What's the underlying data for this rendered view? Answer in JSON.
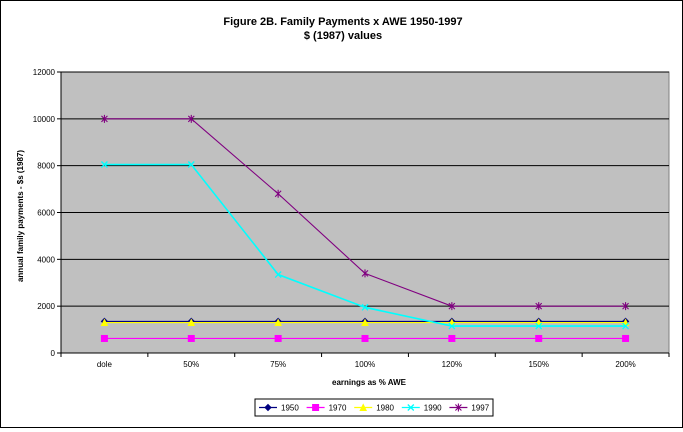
{
  "chart_data": {
    "type": "line",
    "title": "Figure 2B.  Family Payments x AWE  1950-1997",
    "subtitle": "$ (1987) values",
    "xlabel": "earnings as % AWE",
    "ylabel": "annual family payments - $s (1987)",
    "categories": [
      "dole",
      "50%",
      "75%",
      "100%",
      "120%",
      "150%",
      "200%"
    ],
    "ylim": [
      0,
      12000
    ],
    "yticks": [
      0,
      2000,
      4000,
      6000,
      8000,
      10000,
      12000
    ],
    "ytick_labels": [
      "0",
      "2000",
      "4000",
      "6000",
      "8000",
      "10000",
      "12000"
    ],
    "grid": true,
    "legend_position": "bottom",
    "series": [
      {
        "name": "1950",
        "values": [
          1350,
          1350,
          1350,
          1350,
          1350,
          1350,
          1350
        ],
        "color": "#000080",
        "marker": "diamond"
      },
      {
        "name": "1970",
        "values": [
          620,
          620,
          620,
          620,
          620,
          620,
          620
        ],
        "color": "#ff00ff",
        "marker": "square"
      },
      {
        "name": "1980",
        "values": [
          1300,
          1300,
          1300,
          1300,
          1300,
          1300,
          1300
        ],
        "color": "#ffff00",
        "marker": "triangle"
      },
      {
        "name": "1990",
        "values": [
          8050,
          8050,
          3350,
          1950,
          1150,
          1150,
          1150
        ],
        "color": "#00ffff",
        "marker": "x"
      },
      {
        "name": "1997",
        "values": [
          10000,
          10000,
          6800,
          3400,
          2000,
          2000,
          2000
        ],
        "color": "#800080",
        "marker": "star"
      }
    ]
  }
}
